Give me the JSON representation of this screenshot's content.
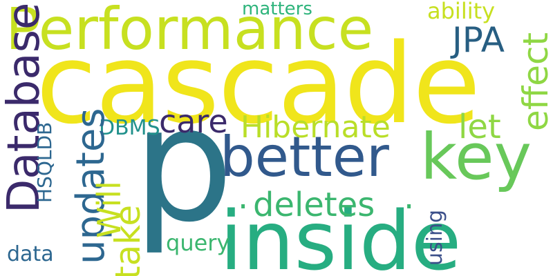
{
  "background": "#ffffff",
  "palette": {
    "dark_purple": "#3b2a6b",
    "blue": "#2d6790",
    "teal": "#21918c",
    "green": "#3bb66f",
    "light_green": "#8fd744",
    "yellow_green": "#c7e020",
    "yellow": "#f0e51b"
  },
  "words": {
    "cascade": "cascade",
    "performance": "Performance",
    "p": "p",
    "inside": "inside",
    "better": "better",
    "key": "key",
    "database": "Database",
    "updates": "updates",
    "hibernate": "Hibernate",
    "deletes": "deletes",
    "jpa": "JPA",
    "effect": "effect",
    "let": "let",
    "care": "care",
    "will": "Will",
    "take": "take",
    "dbms": "DBMS",
    "hsqldb": "HSQLDB",
    "matters": "matters",
    "ability": "ability",
    "query": "query",
    "data": "data",
    "using": "using",
    "dot": "."
  }
}
